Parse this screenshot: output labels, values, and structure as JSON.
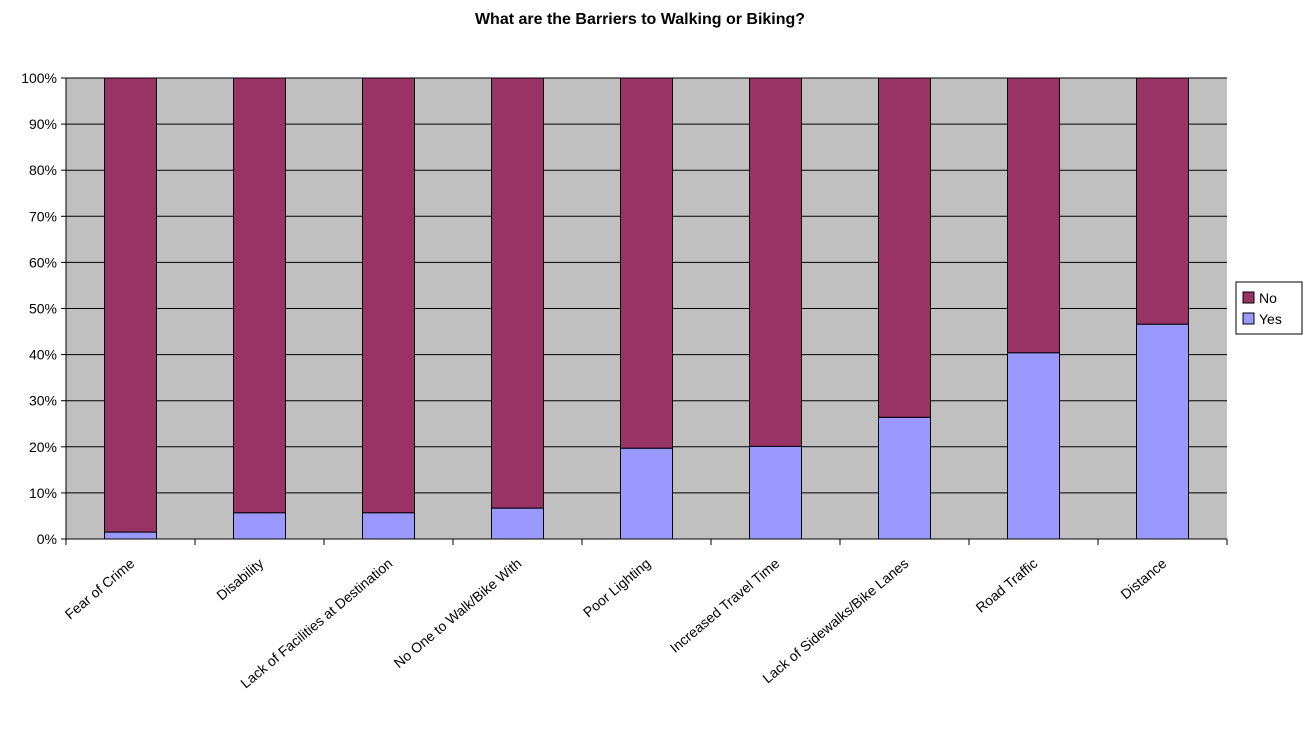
{
  "chart_data": {
    "type": "bar",
    "stacked": "percent",
    "title": "What are the Barriers to Walking or Biking?",
    "xlabel": "",
    "ylabel": "",
    "ylim": [
      0,
      100
    ],
    "y_ticks": [
      "0%",
      "10%",
      "20%",
      "30%",
      "40%",
      "50%",
      "60%",
      "70%",
      "80%",
      "90%",
      "100%"
    ],
    "grid": true,
    "legend_position": "right",
    "categories": [
      "Fear of Crime",
      "Disability",
      "Lack of Facilities at Destination",
      "No One to Walk/Bike With",
      "Poor Lighting",
      "Increased Travel Time",
      "Lack of Sidewalks/Bike Lanes",
      "Road Traffic",
      "Distance"
    ],
    "series": [
      {
        "name": "Yes",
        "color": "#9999ff",
        "values": [
          1.5,
          5.7,
          5.7,
          6.7,
          19.7,
          20.1,
          26.4,
          40.4,
          46.6
        ]
      },
      {
        "name": "No",
        "color": "#993366",
        "values": [
          98.5,
          94.3,
          94.3,
          93.3,
          80.3,
          79.9,
          73.6,
          59.6,
          53.4
        ]
      }
    ],
    "legend_order": [
      "No",
      "Yes"
    ],
    "colors": {
      "plot_background": "#c0c0c0",
      "gridline": "#000000"
    }
  }
}
